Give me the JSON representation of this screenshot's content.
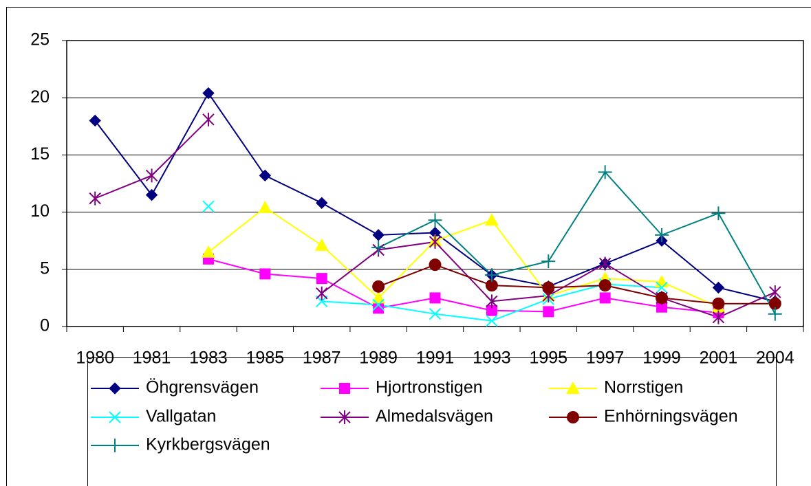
{
  "chart_data": {
    "type": "line",
    "categories": [
      "1980",
      "1981",
      "1983",
      "1985",
      "1987",
      "1989",
      "1991",
      "1993",
      "1995",
      "1997",
      "1999",
      "2001",
      "2004"
    ],
    "ylim": [
      0,
      25
    ],
    "yticks": [
      0,
      5,
      10,
      15,
      20,
      25
    ],
    "grid": true,
    "series": [
      {
        "name": "Öhgrensvägen",
        "color": "#000080",
        "marker": "diamond",
        "values": [
          18,
          11.5,
          20.4,
          13.2,
          10.8,
          8.0,
          8.2,
          4.5,
          3.5,
          5.5,
          7.5,
          3.4,
          2.2
        ]
      },
      {
        "name": "Hjortronstigen",
        "color": "#FF00FF",
        "marker": "square",
        "values": [
          null,
          null,
          5.9,
          4.6,
          4.2,
          1.6,
          2.5,
          1.4,
          1.3,
          2.5,
          1.7,
          1.2,
          null
        ]
      },
      {
        "name": "Norrstigen",
        "color": "#FFFF00",
        "marker": "triangle",
        "values": [
          null,
          null,
          6.5,
          10.4,
          7.1,
          2.5,
          7.5,
          9.3,
          2.7,
          4.2,
          3.9,
          1.7,
          null
        ]
      },
      {
        "name": "Vallgatan",
        "color": "#00FFFF",
        "marker": "x",
        "values": [
          null,
          null,
          10.5,
          null,
          2.2,
          1.9,
          1.1,
          0.5,
          2.4,
          3.7,
          3.4,
          null,
          null
        ]
      },
      {
        "name": "Almedalsvägen",
        "color": "#800080",
        "marker": "star",
        "values": [
          11.2,
          13.2,
          18.1,
          null,
          2.9,
          6.7,
          7.4,
          2.2,
          2.7,
          5.5,
          2.5,
          0.8,
          3.0
        ]
      },
      {
        "name": "Enhörningsvägen",
        "color": "#800000",
        "marker": "circle",
        "values": [
          null,
          null,
          null,
          null,
          null,
          3.5,
          5.4,
          3.6,
          3.4,
          3.6,
          2.5,
          2.0,
          2.0
        ]
      },
      {
        "name": "Kyrkbergsvägen",
        "color": "#008080",
        "marker": "plus",
        "values": [
          null,
          null,
          null,
          null,
          null,
          6.9,
          9.3,
          4.5,
          5.7,
          13.5,
          8.0,
          9.9,
          1.1
        ]
      }
    ]
  }
}
